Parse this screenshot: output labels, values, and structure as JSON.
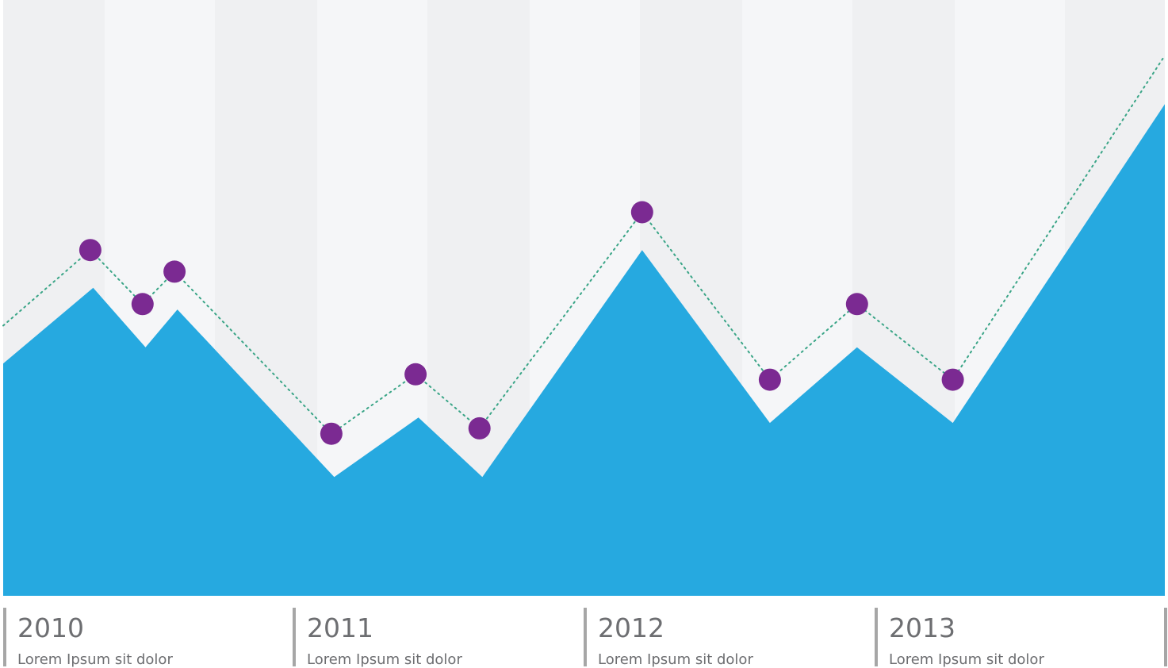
{
  "chart_data": {
    "type": "area",
    "title": "",
    "xlabel": "",
    "ylabel": "",
    "grid": false,
    "ylim": [
      0,
      100
    ],
    "xlim": [
      2010,
      2014
    ],
    "colors": {
      "area": "#26a9e0",
      "dots": "#7b2a92",
      "dotted_line": "#3aa587",
      "band_dark": "#eff0f2",
      "band_light": "#f5f6f8",
      "separator": "#a6a6a6",
      "text": "#6d6e71"
    },
    "periods": [
      {
        "year": "2010",
        "caption": "Lorem Ipsum sit dolor"
      },
      {
        "year": "2011",
        "caption": "Lorem Ipsum sit dolor"
      },
      {
        "year": "2012",
        "caption": "Lorem Ipsum sit dolor"
      },
      {
        "year": "2013",
        "caption": "Lorem Ipsum sit dolor"
      }
    ],
    "series": [
      {
        "kind": "area",
        "x": [
          2010.0,
          2010.31,
          2010.49,
          2010.6,
          2011.14,
          2011.43,
          2011.65,
          2012.2,
          2012.64,
          2012.94,
          2013.27,
          2014.0
        ],
        "values": [
          43,
          57,
          46,
          53,
          22,
          33,
          22,
          64,
          32,
          46,
          32,
          91
        ]
      },
      {
        "kind": "line-dots",
        "x": [
          2010.0,
          2010.3,
          2010.48,
          2010.59,
          2011.13,
          2011.42,
          2011.64,
          2012.2,
          2012.64,
          2012.94,
          2013.27,
          2014.0
        ],
        "values": [
          50,
          64,
          54,
          60,
          30,
          41,
          31,
          71,
          40,
          54,
          40,
          100
        ],
        "markers": [
          false,
          true,
          true,
          true,
          true,
          true,
          true,
          true,
          true,
          true,
          true,
          false
        ]
      }
    ]
  }
}
